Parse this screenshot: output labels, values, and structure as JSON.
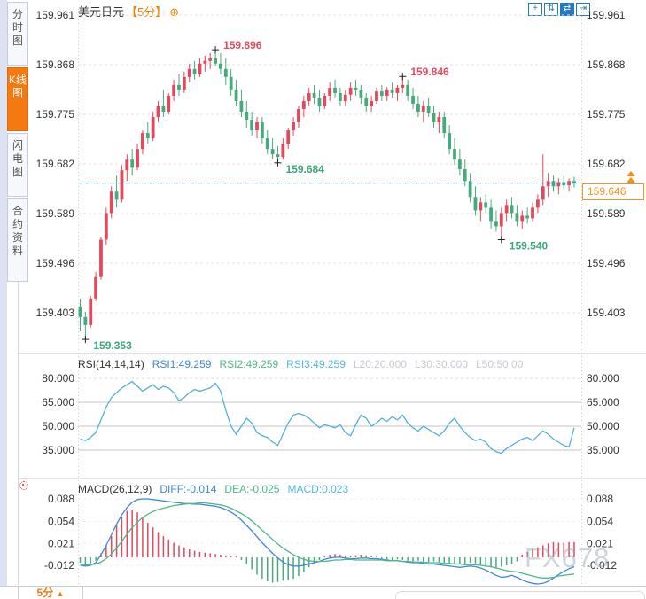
{
  "colors": {
    "up": "#e2495c",
    "down": "#45ab7b",
    "accent_orange": "#f57912",
    "price_line_blue": "#2f81d8",
    "rsi_line": "#54b0dd",
    "diff_line": "#3f87d9",
    "dea_line": "#4db887",
    "grid": "#e2e2e2",
    "price_box_orange": "#f7931c"
  },
  "sidebar": {
    "tabs": [
      {
        "label": "分时图",
        "selected": false
      },
      {
        "label": "K线图",
        "selected": true
      },
      {
        "label": "闪电图",
        "selected": false
      },
      {
        "label": "合约资料",
        "selected": false
      }
    ]
  },
  "header": {
    "symbol": "美元日元",
    "period": "【5分】",
    "add_icon": "⊕"
  },
  "toolbar": {
    "icons": [
      {
        "name": "crosshair-icon",
        "glyph": "+",
        "active": false
      },
      {
        "name": "fit-vertical-icon",
        "glyph": "⇅",
        "active": false
      },
      {
        "name": "fit-horizontal-icon",
        "glyph": "⇄",
        "active": true
      },
      {
        "name": "goto-latest-icon",
        "glyph": "⇥",
        "active": false
      }
    ]
  },
  "price_scale": {
    "labels": [
      "159.961",
      "159.868",
      "159.775",
      "159.682",
      "159.589",
      "159.496",
      "159.403"
    ]
  },
  "current_price": {
    "value": "159.646",
    "level": 159.646
  },
  "rsi_header": [
    {
      "text": "RSI(14,14,14)",
      "color": "#333333"
    },
    {
      "text": "RSI1:49.259",
      "color": "#3f87d9"
    },
    {
      "text": "RSI2:49.259",
      "color": "#4db887"
    },
    {
      "text": "RSI3:49.259",
      "color": "#54b8e0"
    },
    {
      "text": "L20:20.000",
      "color": "#c6cad2"
    },
    {
      "text": "L30:30.000",
      "color": "#c6cad2"
    },
    {
      "text": "L50:50.00",
      "color": "#c6cad2"
    }
  ],
  "rsi_scale": {
    "labels": [
      "80.000",
      "65.000",
      "50.000",
      "35.000"
    ],
    "levels": [
      80,
      65,
      50,
      35
    ]
  },
  "macd_header": [
    {
      "text": "MACD(26,12,9)",
      "color": "#333333"
    },
    {
      "text": "DIFF:-0.014",
      "color": "#3f87d9"
    },
    {
      "text": "DEA:-0.025",
      "color": "#4db887"
    },
    {
      "text": "MACD:0.023",
      "color": "#54b8e0"
    }
  ],
  "macd_scale": {
    "labels": [
      "0.088",
      "0.054",
      "0.021",
      "-0.012"
    ],
    "levels": [
      0.088,
      0.054,
      0.021,
      -0.012
    ]
  },
  "footer": {
    "period_label": "5分",
    "arrow": "▲"
  },
  "watermark": "FX678",
  "chart_data": [
    {
      "type": "candlestick",
      "title": "美元日元 5分",
      "ylabel": "price",
      "ylim": [
        159.34,
        159.98
      ],
      "yticks": [
        159.961,
        159.868,
        159.775,
        159.682,
        159.589,
        159.496,
        159.403
      ],
      "last_close": 159.646,
      "annotations": [
        {
          "text": "159.896",
          "price": 159.896,
          "index": 26,
          "side": "high"
        },
        {
          "text": "159.846",
          "price": 159.846,
          "index": 62,
          "side": "high"
        },
        {
          "text": "159.684",
          "price": 159.684,
          "index": 38,
          "side": "low"
        },
        {
          "text": "159.540",
          "price": 159.54,
          "index": 81,
          "side": "low"
        },
        {
          "text": "159.353",
          "price": 159.353,
          "index": 1,
          "side": "low"
        }
      ],
      "ohlc": [
        [
          159.415,
          159.43,
          159.37,
          159.395
        ],
        [
          159.395,
          159.405,
          159.353,
          159.38
        ],
        [
          159.38,
          159.435,
          159.375,
          159.43
        ],
        [
          159.43,
          159.48,
          159.425,
          159.47
        ],
        [
          159.47,
          159.545,
          159.465,
          159.54
        ],
        [
          159.54,
          159.6,
          159.53,
          159.59
        ],
        [
          159.59,
          159.64,
          159.58,
          159.63
        ],
        [
          159.63,
          159.66,
          159.6,
          159.615
        ],
        [
          159.615,
          159.68,
          159.61,
          159.67
        ],
        [
          159.67,
          159.7,
          159.65,
          159.69
        ],
        [
          159.69,
          159.71,
          159.66,
          159.675
        ],
        [
          159.675,
          159.72,
          159.67,
          159.71
        ],
        [
          159.71,
          159.745,
          159.7,
          159.74
        ],
        [
          159.74,
          159.76,
          159.72,
          159.73
        ],
        [
          159.73,
          159.78,
          159.725,
          159.77
        ],
        [
          159.77,
          159.8,
          159.76,
          159.79
        ],
        [
          159.79,
          159.82,
          159.77,
          159.78
        ],
        [
          159.78,
          159.815,
          159.775,
          159.81
        ],
        [
          159.81,
          159.84,
          159.8,
          159.83
        ],
        [
          159.83,
          159.85,
          159.81,
          159.82
        ],
        [
          159.82,
          159.855,
          159.815,
          159.845
        ],
        [
          159.845,
          159.87,
          159.835,
          159.86
        ],
        [
          159.86,
          159.875,
          159.84,
          159.85
        ],
        [
          159.85,
          159.88,
          159.845,
          159.87
        ],
        [
          159.87,
          159.885,
          159.855,
          159.875
        ],
        [
          159.875,
          159.89,
          159.86,
          159.88
        ],
        [
          159.88,
          159.896,
          159.865,
          159.87
        ],
        [
          159.87,
          159.89,
          159.85,
          159.86
        ],
        [
          159.86,
          159.88,
          159.83,
          159.845
        ],
        [
          159.845,
          159.86,
          159.81,
          159.82
        ],
        [
          159.82,
          159.84,
          159.79,
          159.8
        ],
        [
          159.8,
          159.82,
          159.77,
          159.78
        ],
        [
          159.78,
          159.8,
          159.75,
          159.765
        ],
        [
          159.765,
          159.78,
          159.735,
          159.745
        ],
        [
          159.745,
          159.77,
          159.73,
          159.76
        ],
        [
          159.76,
          159.77,
          159.72,
          159.73
        ],
        [
          159.73,
          159.745,
          159.7,
          159.71
        ],
        [
          159.71,
          159.73,
          159.69,
          159.7
        ],
        [
          159.7,
          159.715,
          159.684,
          159.695
        ],
        [
          159.695,
          159.73,
          159.69,
          159.72
        ],
        [
          159.72,
          159.75,
          159.71,
          159.745
        ],
        [
          159.745,
          159.77,
          159.735,
          159.76
        ],
        [
          159.76,
          159.79,
          159.75,
          159.785
        ],
        [
          159.785,
          159.81,
          159.77,
          159.8
        ],
        [
          159.8,
          159.825,
          159.79,
          159.815
        ],
        [
          159.815,
          159.83,
          159.795,
          159.805
        ],
        [
          159.805,
          159.82,
          159.78,
          159.79
        ],
        [
          159.79,
          159.815,
          159.785,
          159.81
        ],
        [
          159.81,
          159.835,
          159.8,
          159.825
        ],
        [
          159.825,
          159.84,
          159.805,
          159.815
        ],
        [
          159.815,
          159.825,
          159.79,
          159.8
        ],
        [
          159.8,
          159.82,
          159.79,
          159.812
        ],
        [
          159.812,
          159.835,
          159.8,
          159.825
        ],
        [
          159.825,
          159.84,
          159.81,
          159.82
        ],
        [
          159.82,
          159.83,
          159.795,
          159.805
        ],
        [
          159.805,
          159.815,
          159.78,
          159.79
        ],
        [
          159.79,
          159.81,
          159.78,
          159.8
        ],
        [
          159.8,
          159.825,
          159.795,
          159.818
        ],
        [
          159.818,
          159.83,
          159.8,
          159.81
        ],
        [
          159.81,
          159.826,
          159.8,
          159.82
        ],
        [
          159.82,
          159.835,
          159.805,
          159.815
        ],
        [
          159.815,
          159.83,
          159.8,
          159.825
        ],
        [
          159.825,
          159.846,
          159.815,
          159.83
        ],
        [
          159.83,
          159.84,
          159.8,
          159.81
        ],
        [
          159.81,
          159.825,
          159.785,
          159.795
        ],
        [
          159.795,
          159.81,
          159.77,
          159.78
        ],
        [
          159.78,
          159.8,
          159.76,
          159.79
        ],
        [
          159.79,
          159.805,
          159.77,
          159.778
        ],
        [
          159.778,
          159.79,
          159.75,
          159.76
        ],
        [
          159.76,
          159.78,
          159.74,
          159.77
        ],
        [
          159.77,
          159.78,
          159.73,
          159.74
        ],
        [
          159.74,
          159.755,
          159.7,
          159.71
        ],
        [
          159.71,
          159.73,
          159.68,
          159.69
        ],
        [
          159.69,
          159.71,
          159.66,
          159.672
        ],
        [
          159.672,
          159.69,
          159.64,
          159.65
        ],
        [
          159.65,
          159.665,
          159.61,
          159.62
        ],
        [
          159.62,
          159.64,
          159.585,
          159.595
        ],
        [
          159.595,
          159.62,
          159.575,
          159.61
        ],
        [
          159.61,
          159.625,
          159.59,
          159.6
        ],
        [
          159.6,
          159.615,
          159.56,
          159.575
        ],
        [
          159.575,
          159.595,
          159.555,
          159.565
        ],
        [
          159.565,
          159.6,
          159.54,
          159.59
        ],
        [
          159.59,
          159.615,
          159.575,
          159.605
        ],
        [
          159.605,
          159.62,
          159.58,
          159.59
        ],
        [
          159.59,
          159.605,
          159.565,
          159.575
        ],
        [
          159.575,
          159.595,
          159.56,
          159.585
        ],
        [
          159.585,
          159.6,
          159.57,
          159.58
        ],
        [
          159.58,
          159.61,
          159.575,
          159.6
        ],
        [
          159.6,
          159.625,
          159.59,
          159.615
        ],
        [
          159.615,
          159.7,
          159.605,
          159.64
        ],
        [
          159.64,
          159.665,
          159.62,
          159.65
        ],
        [
          159.65,
          159.66,
          159.63,
          159.64
        ],
        [
          159.64,
          159.655,
          159.625,
          159.648
        ],
        [
          159.648,
          159.66,
          159.635,
          159.642
        ],
        [
          159.642,
          159.655,
          159.63,
          159.65
        ],
        [
          159.65,
          159.658,
          159.638,
          159.646
        ]
      ]
    },
    {
      "type": "line",
      "title": "RSI(14,14,14)",
      "legend": [
        "RSI1",
        "RSI2",
        "RSI3"
      ],
      "ylim": [
        30,
        85
      ],
      "levels": [
        80,
        65,
        50,
        35
      ],
      "value_now": 49.259,
      "values": [
        42,
        41,
        43,
        46,
        54,
        62,
        68,
        71,
        74,
        76,
        78,
        75,
        72,
        74,
        76,
        73,
        75,
        74,
        71,
        66,
        68,
        71,
        73,
        72,
        73,
        74,
        77,
        72,
        60,
        50,
        45,
        50,
        55,
        52,
        46,
        44,
        43,
        40,
        38,
        45,
        52,
        57,
        58,
        57,
        55,
        52,
        49,
        51,
        50,
        49,
        51,
        46,
        44,
        51,
        57,
        55,
        50,
        52,
        55,
        53,
        56,
        54,
        57,
        52,
        49,
        47,
        50,
        48,
        46,
        44,
        47,
        52,
        55,
        50,
        46,
        43,
        41,
        42,
        40,
        36,
        34,
        33,
        36,
        38,
        40,
        42,
        43,
        41,
        44,
        47,
        45,
        42,
        40,
        38,
        37,
        49
      ]
    },
    {
      "type": "macd",
      "title": "MACD(26,12,9)",
      "yticks": [
        0.088,
        0.054,
        0.021,
        -0.012
      ],
      "diff_now": -0.014,
      "dea_now": -0.025,
      "macd_now": 0.023,
      "hist": [
        -0.008,
        -0.01,
        -0.009,
        -0.005,
        0.006,
        0.018,
        0.032,
        0.048,
        0.06,
        0.07,
        0.072,
        0.068,
        0.06,
        0.052,
        0.045,
        0.038,
        0.032,
        0.027,
        0.022,
        0.018,
        0.015,
        0.012,
        0.01,
        0.008,
        0.007,
        0.006,
        0.005,
        0.004,
        0.003,
        0.002,
        0.002,
        -0.004,
        -0.01,
        -0.018,
        -0.026,
        -0.032,
        -0.036,
        -0.038,
        -0.037,
        -0.035,
        -0.034,
        -0.032,
        -0.028,
        -0.022,
        -0.015,
        -0.009,
        -0.004,
        0.002,
        0.004,
        0.005,
        0.004,
        0.003,
        0.002,
        0.003,
        0.004,
        0.003,
        0.002,
        0.002,
        -0.002,
        -0.003,
        -0.004,
        -0.003,
        -0.004,
        -0.005,
        -0.006,
        -0.005,
        -0.006,
        -0.007,
        -0.006,
        -0.007,
        -0.008,
        -0.009,
        -0.01,
        -0.011,
        -0.01,
        -0.008,
        -0.009,
        -0.011,
        -0.013,
        -0.015,
        -0.016,
        -0.014,
        -0.012,
        -0.01,
        -0.006,
        0.004,
        0.008,
        0.012,
        0.015,
        0.018,
        0.021,
        0.023,
        0.022,
        0.022,
        0.023,
        0.023
      ],
      "diff": [
        -0.012,
        -0.013,
        -0.012,
        -0.008,
        0.004,
        0.018,
        0.034,
        0.05,
        0.064,
        0.075,
        0.083,
        0.087,
        0.088,
        0.088,
        0.087,
        0.086,
        0.085,
        0.084,
        0.083,
        0.082,
        0.081,
        0.081,
        0.08,
        0.08,
        0.079,
        0.078,
        0.077,
        0.075,
        0.072,
        0.068,
        0.063,
        0.056,
        0.048,
        0.04,
        0.031,
        0.022,
        0.014,
        0.006,
        -0.001,
        -0.007,
        -0.011,
        -0.013,
        -0.013,
        -0.012,
        -0.01,
        -0.008,
        -0.006,
        -0.003,
        -0.001,
        0.0,
        0.0,
        -0.001,
        -0.002,
        -0.002,
        -0.001,
        -0.001,
        -0.002,
        -0.002,
        -0.003,
        -0.004,
        -0.005,
        -0.005,
        -0.006,
        -0.007,
        -0.008,
        -0.008,
        -0.009,
        -0.01,
        -0.01,
        -0.011,
        -0.012,
        -0.013,
        -0.014,
        -0.015,
        -0.014,
        -0.013,
        -0.014,
        -0.016,
        -0.019,
        -0.023,
        -0.027,
        -0.03,
        -0.029,
        -0.027,
        -0.03,
        -0.034,
        -0.037,
        -0.039,
        -0.04,
        -0.039,
        -0.036,
        -0.031,
        -0.026,
        -0.021,
        -0.017,
        -0.014
      ],
      "dea": [
        -0.01,
        -0.011,
        -0.011,
        -0.01,
        -0.007,
        -0.002,
        0.005,
        0.014,
        0.024,
        0.035,
        0.045,
        0.053,
        0.06,
        0.065,
        0.069,
        0.072,
        0.074,
        0.076,
        0.078,
        0.079,
        0.08,
        0.081,
        0.081,
        0.082,
        0.082,
        0.081,
        0.08,
        0.079,
        0.077,
        0.074,
        0.07,
        0.066,
        0.061,
        0.055,
        0.048,
        0.041,
        0.034,
        0.027,
        0.02,
        0.014,
        0.009,
        0.004,
        0.0,
        -0.003,
        -0.005,
        -0.006,
        -0.006,
        -0.006,
        -0.005,
        -0.004,
        -0.004,
        -0.003,
        -0.003,
        -0.004,
        -0.004,
        -0.004,
        -0.004,
        -0.004,
        -0.004,
        -0.005,
        -0.005,
        -0.005,
        -0.006,
        -0.006,
        -0.007,
        -0.007,
        -0.007,
        -0.008,
        -0.008,
        -0.008,
        -0.009,
        -0.009,
        -0.01,
        -0.01,
        -0.011,
        -0.011,
        -0.011,
        -0.012,
        -0.013,
        -0.014,
        -0.016,
        -0.018,
        -0.02,
        -0.021,
        -0.022,
        -0.024,
        -0.026,
        -0.028,
        -0.03,
        -0.031,
        -0.031,
        -0.03,
        -0.028,
        -0.027,
        -0.026,
        -0.025
      ]
    }
  ]
}
